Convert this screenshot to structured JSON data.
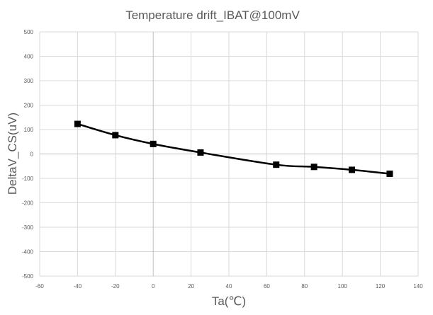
{
  "chart_data": {
    "type": "line",
    "title": "Temperature drift_IBAT@100mV",
    "xlabel": "Ta(℃)",
    "ylabel": "DeltaV_CS(uV)",
    "xlim": [
      -60,
      140
    ],
    "ylim": [
      -500,
      500
    ],
    "x_ticks": [
      -60,
      -40,
      -20,
      0,
      20,
      40,
      60,
      80,
      100,
      120,
      140
    ],
    "y_ticks": [
      500,
      400,
      300,
      200,
      100,
      0,
      -100,
      -200,
      -300,
      -400,
      -500
    ],
    "grid": true,
    "legend": "none",
    "series": [
      {
        "x": [
          -40,
          -20,
          0,
          25,
          65,
          85,
          105,
          125
        ],
        "y": [
          123,
          77,
          41,
          6,
          -44,
          -53,
          -65,
          -81
        ],
        "color": "#000000",
        "marker": "square"
      }
    ]
  }
}
